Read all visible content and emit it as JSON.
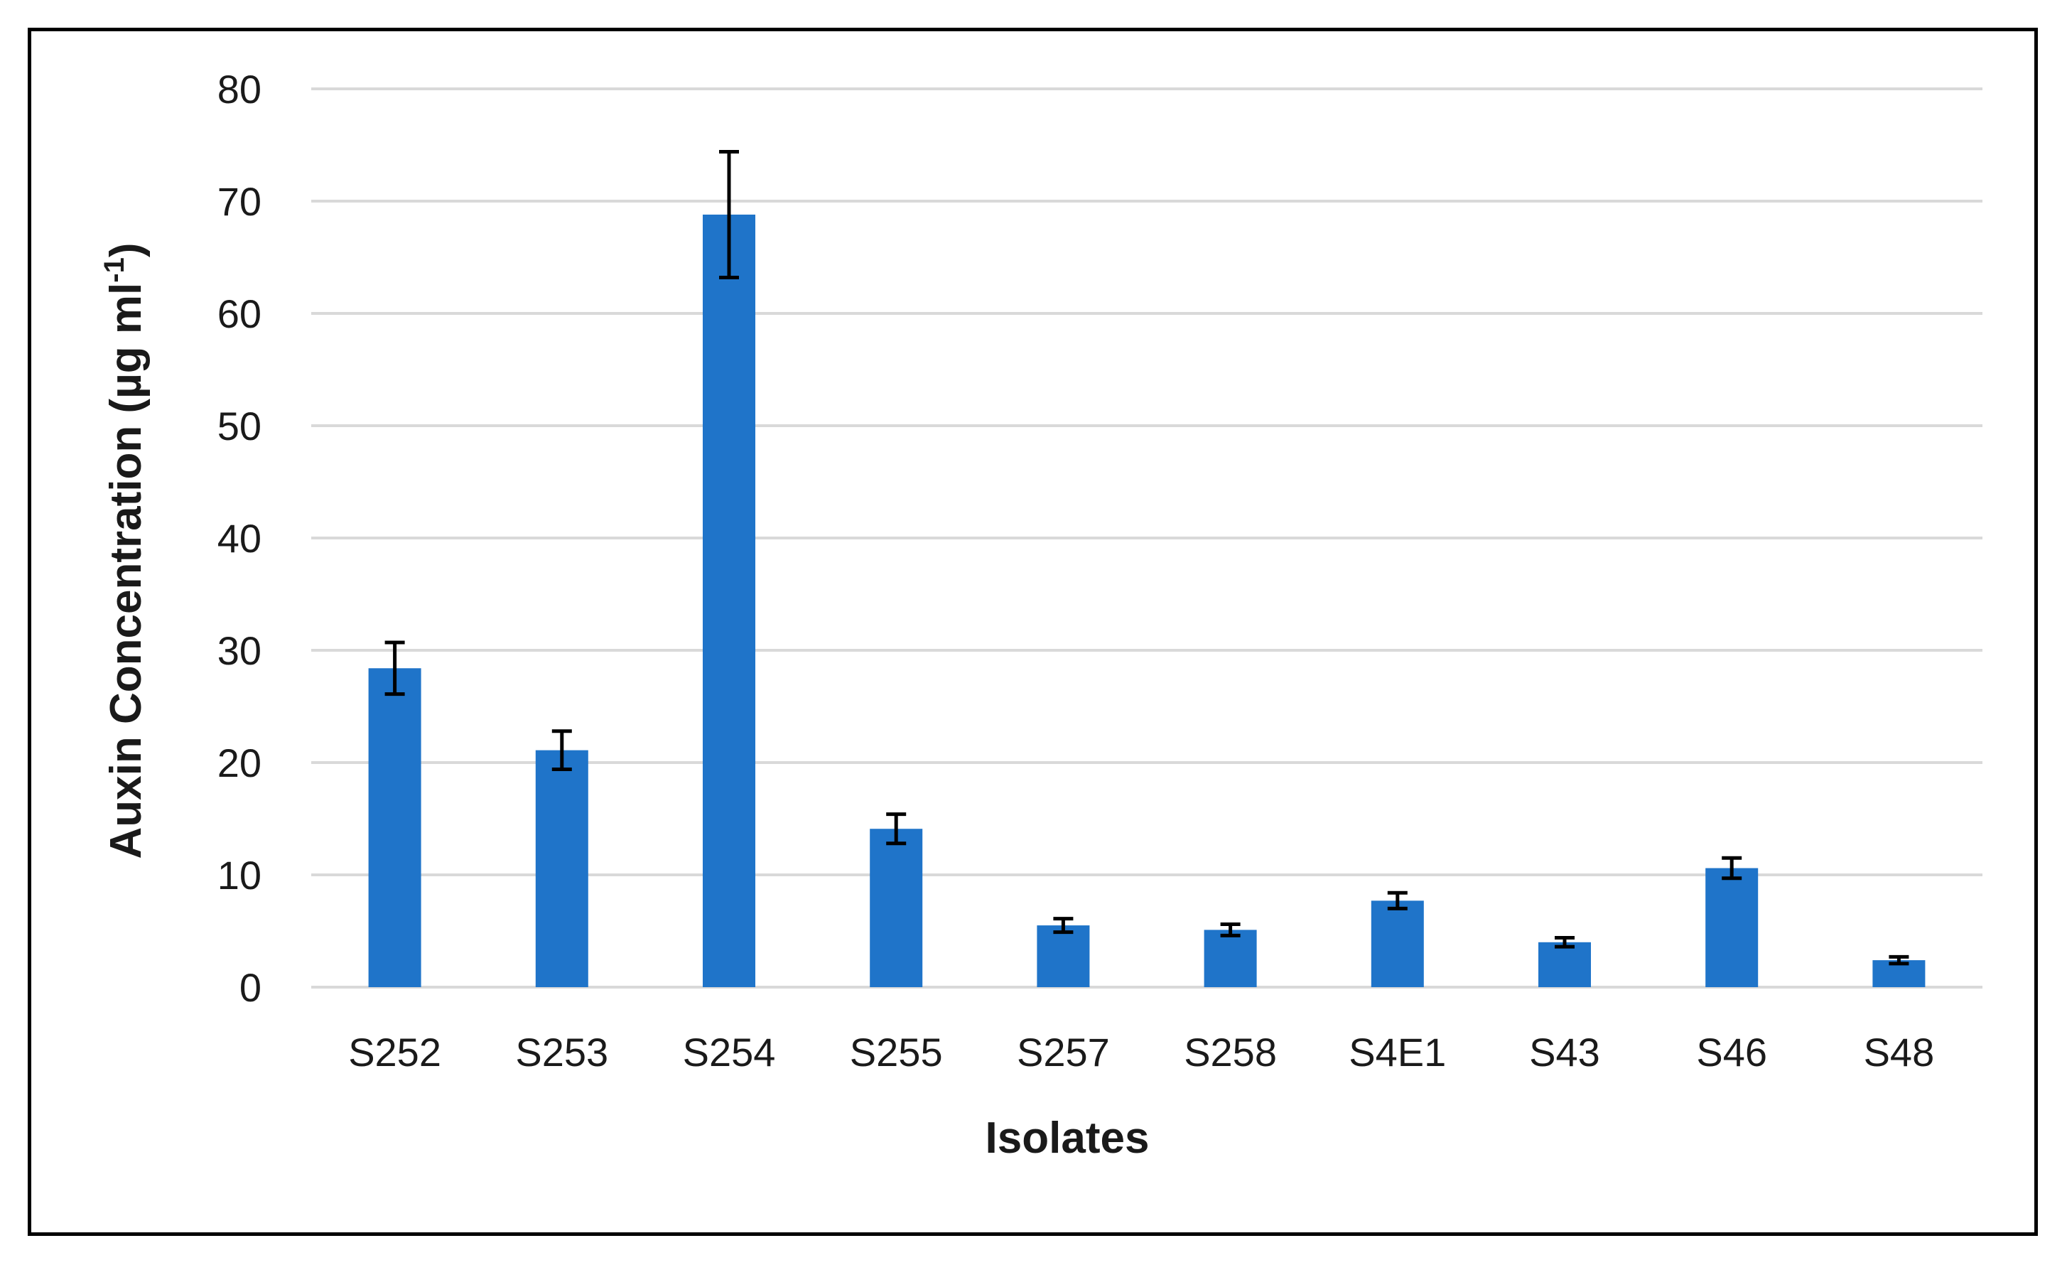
{
  "chart_data": {
    "type": "bar",
    "title": "",
    "xlabel": "Isolates",
    "ylabel": {
      "main": "Auxin Concentration (µg ml",
      "superscript": "-1",
      "close": ")"
    },
    "ylim": [
      0,
      80
    ],
    "yticks": [
      0,
      10,
      20,
      30,
      40,
      50,
      60,
      70,
      80
    ],
    "grid": true,
    "bar_color": "#1F74C9",
    "grid_color": "#D9D9D9",
    "error_bar_color": "#000000",
    "categories": [
      "S252",
      "S253",
      "S254",
      "S255",
      "S257",
      "S258",
      "S4E1",
      "S43",
      "S46",
      "S48"
    ],
    "values": [
      28.4,
      21.1,
      68.8,
      14.1,
      5.5,
      5.1,
      7.7,
      4.0,
      10.6,
      2.4
    ],
    "errors": [
      2.3,
      1.7,
      5.6,
      1.3,
      0.6,
      0.5,
      0.7,
      0.4,
      0.9,
      0.3
    ]
  }
}
